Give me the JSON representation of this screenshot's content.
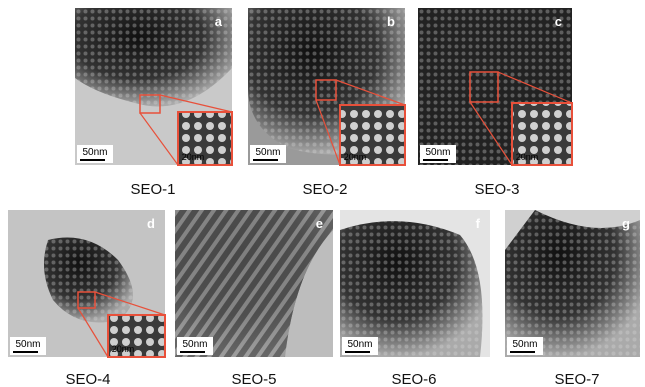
{
  "panels": [
    {
      "letter": "a",
      "caption": "SEO-1",
      "scale_bar": "50nm",
      "inset_scale_bar": "20nm"
    },
    {
      "letter": "b",
      "caption": "SEO-2",
      "scale_bar": "50nm",
      "inset_scale_bar": "20nm"
    },
    {
      "letter": "c",
      "caption": "SEO-3",
      "scale_bar": "50nm",
      "inset_scale_bar": "20nm"
    },
    {
      "letter": "d",
      "caption": "SEO-4",
      "scale_bar": "50nm",
      "inset_scale_bar": "20nm"
    },
    {
      "letter": "e",
      "caption": "SEO-5",
      "scale_bar": "50nm"
    },
    {
      "letter": "f",
      "caption": "SEO-6",
      "scale_bar": "50nm"
    },
    {
      "letter": "g",
      "caption": "SEO-7",
      "scale_bar": "50nm"
    }
  ]
}
